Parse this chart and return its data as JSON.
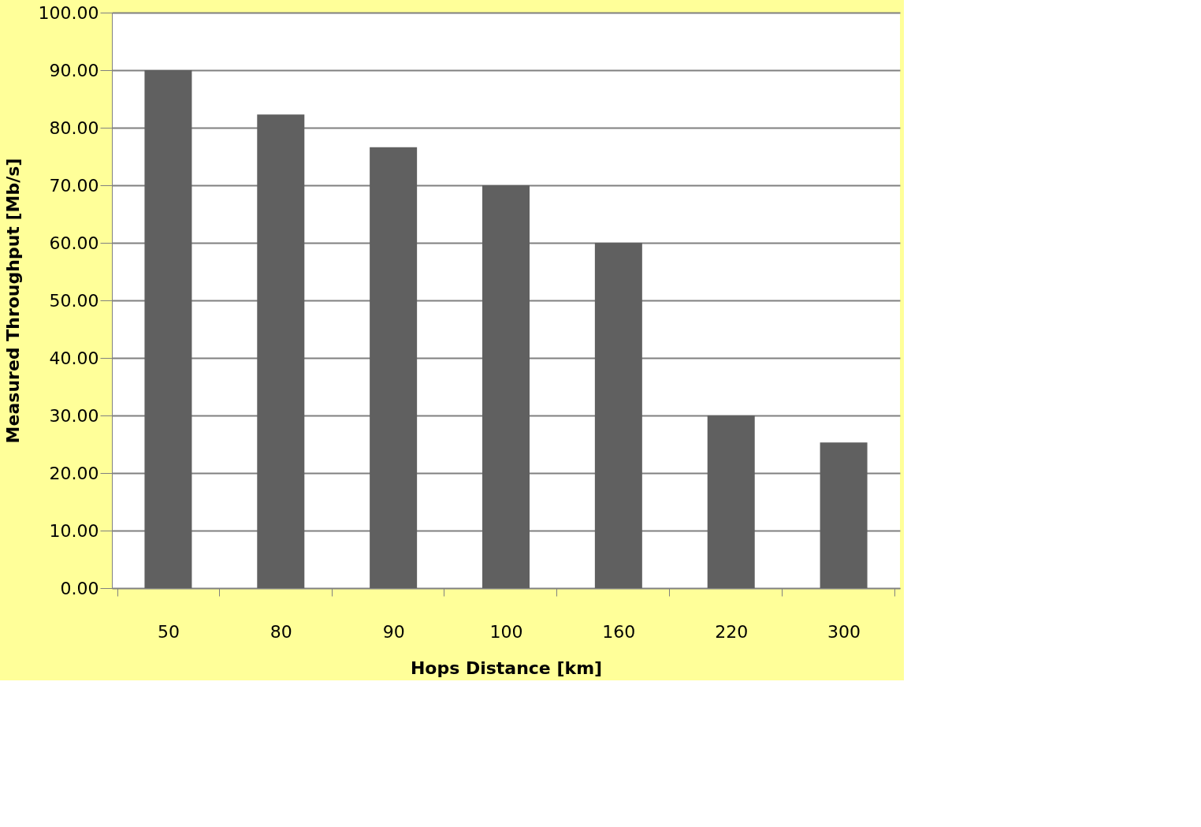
{
  "chart_data": {
    "type": "bar",
    "xlabel": "Hops Distance [km]",
    "ylabel": "Measured Throughput [Mb/s]",
    "categories": [
      "50",
      "80",
      "90",
      "100",
      "160",
      "220",
      "300"
    ],
    "values": [
      90,
      82.3,
      76.6,
      70,
      60,
      30,
      25.3
    ],
    "color": "#606060",
    "ylim": [
      0,
      100
    ],
    "yticks": [
      {
        "value": 0,
        "label": "0.00"
      },
      {
        "value": 10,
        "label": "10.00"
      },
      {
        "value": 20,
        "label": "20.00"
      },
      {
        "value": 30,
        "label": "30.00"
      },
      {
        "value": 40,
        "label": "40.00"
      },
      {
        "value": 50,
        "label": "50.00"
      },
      {
        "value": 60,
        "label": "60.00"
      },
      {
        "value": 70,
        "label": "70.00"
      },
      {
        "value": 80,
        "label": "80.00"
      },
      {
        "value": 90,
        "label": "90.00"
      },
      {
        "value": 100,
        "label": "100.00"
      }
    ],
    "grid": "y",
    "legend": false
  }
}
